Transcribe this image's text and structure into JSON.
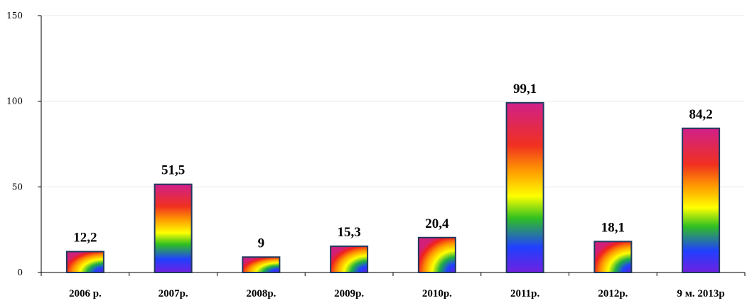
{
  "chart_data": {
    "type": "bar",
    "categories": [
      "2006 р.",
      "2007р.",
      "2008р.",
      "2009р.",
      "2010р.",
      "2011р.",
      "2012р.",
      "9 м. 2013р"
    ],
    "values": [
      12.2,
      51.5,
      9,
      15.3,
      20.4,
      99.1,
      18.1,
      84.2
    ],
    "data_labels": [
      "12,2",
      "51,5",
      "9",
      "15,3",
      "20,4",
      "99,1",
      "18,1",
      "84,2"
    ],
    "title": "",
    "xlabel": "",
    "ylabel": "",
    "ylim": [
      0,
      150
    ],
    "yticks": [
      "0",
      "50",
      "100",
      "150"
    ],
    "grid": true,
    "legend": "none",
    "bar_fill": "rainbow-gradient",
    "colors": {
      "bar_border": "#1f3a5f",
      "gradient": [
        "#ff00ff",
        "#ff2020",
        "#ff8000",
        "#ffff00",
        "#00c000",
        "#0060ff",
        "#8000ff"
      ]
    }
  }
}
